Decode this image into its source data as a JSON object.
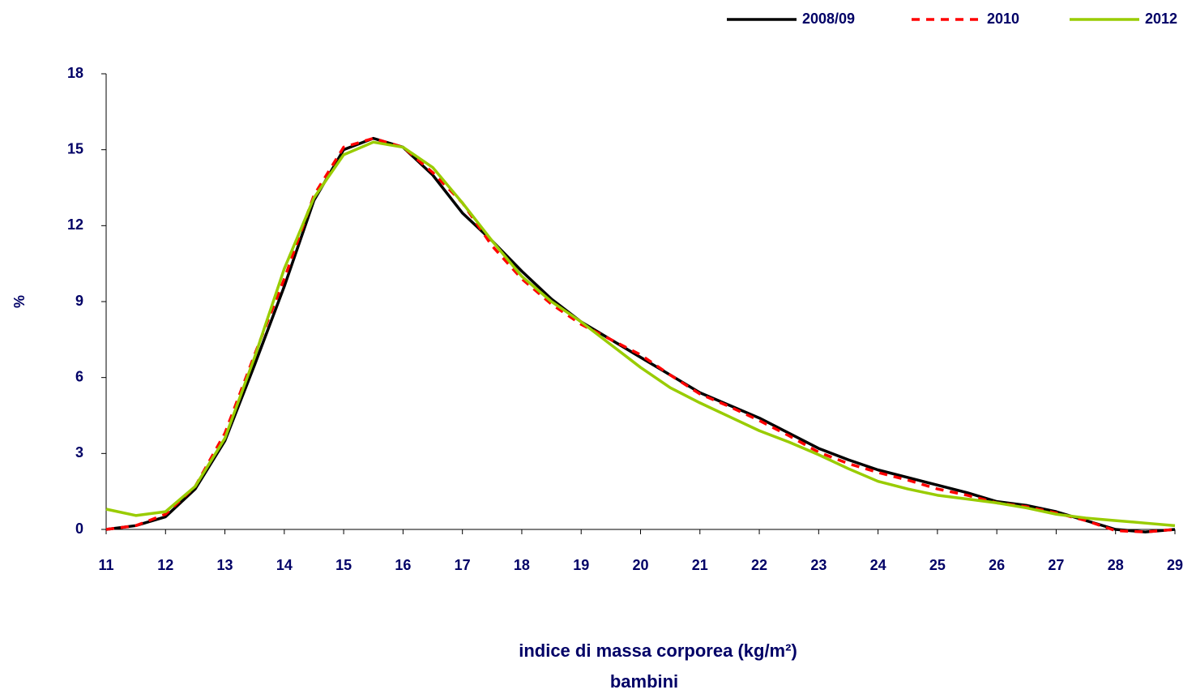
{
  "chart_data": {
    "type": "line",
    "x_label": "indice di massa corporea (kg/m²)",
    "x_label_2": "bambini",
    "y_label": "%",
    "x": [
      11,
      11.5,
      12,
      12.5,
      13,
      13.5,
      14,
      14.5,
      15,
      15.5,
      16,
      16.5,
      17,
      17.5,
      18,
      18.5,
      19,
      19.5,
      20,
      20.5,
      21,
      21.5,
      22,
      22.5,
      23,
      23.5,
      24,
      24.5,
      25,
      25.5,
      26,
      26.5,
      27,
      27.5,
      28,
      28.5,
      29
    ],
    "series": [
      {
        "name": "2008/09",
        "color": "#000000",
        "dash": "solid",
        "values": [
          0,
          0.15,
          0.5,
          1.6,
          3.5,
          6.5,
          9.6,
          13.0,
          15.0,
          15.45,
          15.1,
          14.0,
          12.5,
          11.4,
          10.2,
          9.1,
          8.2,
          7.5,
          6.8,
          6.1,
          5.4,
          4.9,
          4.4,
          3.8,
          3.2,
          2.75,
          2.35,
          2.05,
          1.75,
          1.45,
          1.1,
          0.95,
          0.7,
          0.35,
          0,
          -0.1,
          0
        ]
      },
      {
        "name": "2010",
        "color": "#ff0000",
        "dash": "dashed",
        "values": [
          0,
          0.15,
          0.6,
          1.7,
          3.8,
          6.9,
          9.9,
          13.2,
          15.1,
          15.45,
          15.1,
          14.1,
          12.9,
          11.2,
          9.9,
          8.9,
          8.1,
          7.5,
          6.9,
          6.1,
          5.35,
          4.85,
          4.3,
          3.7,
          3.05,
          2.6,
          2.25,
          1.95,
          1.6,
          1.35,
          1.05,
          0.9,
          0.65,
          0.35,
          -0.05,
          -0.1,
          0
        ]
      },
      {
        "name": "2012",
        "color": "#99cc00",
        "dash": "solid",
        "values": [
          0.8,
          0.55,
          0.7,
          1.7,
          3.6,
          6.8,
          10.3,
          13.1,
          14.8,
          15.3,
          15.1,
          14.3,
          12.9,
          11.4,
          10.0,
          9.0,
          8.2,
          7.3,
          6.4,
          5.6,
          5.0,
          4.45,
          3.9,
          3.45,
          2.95,
          2.4,
          1.9,
          1.6,
          1.35,
          1.2,
          1.05,
          0.85,
          0.6,
          0.45,
          0.35,
          0.25,
          0.15
        ]
      }
    ],
    "xlim": [
      11,
      29
    ],
    "xticks": [
      11,
      12,
      13,
      14,
      15,
      16,
      17,
      18,
      19,
      20,
      21,
      22,
      23,
      24,
      25,
      26,
      27,
      28,
      29
    ],
    "ylim": [
      0,
      18
    ],
    "yticks": [
      0,
      3,
      6,
      9,
      12,
      15,
      18
    ],
    "legend": "top-right",
    "grid": false
  }
}
